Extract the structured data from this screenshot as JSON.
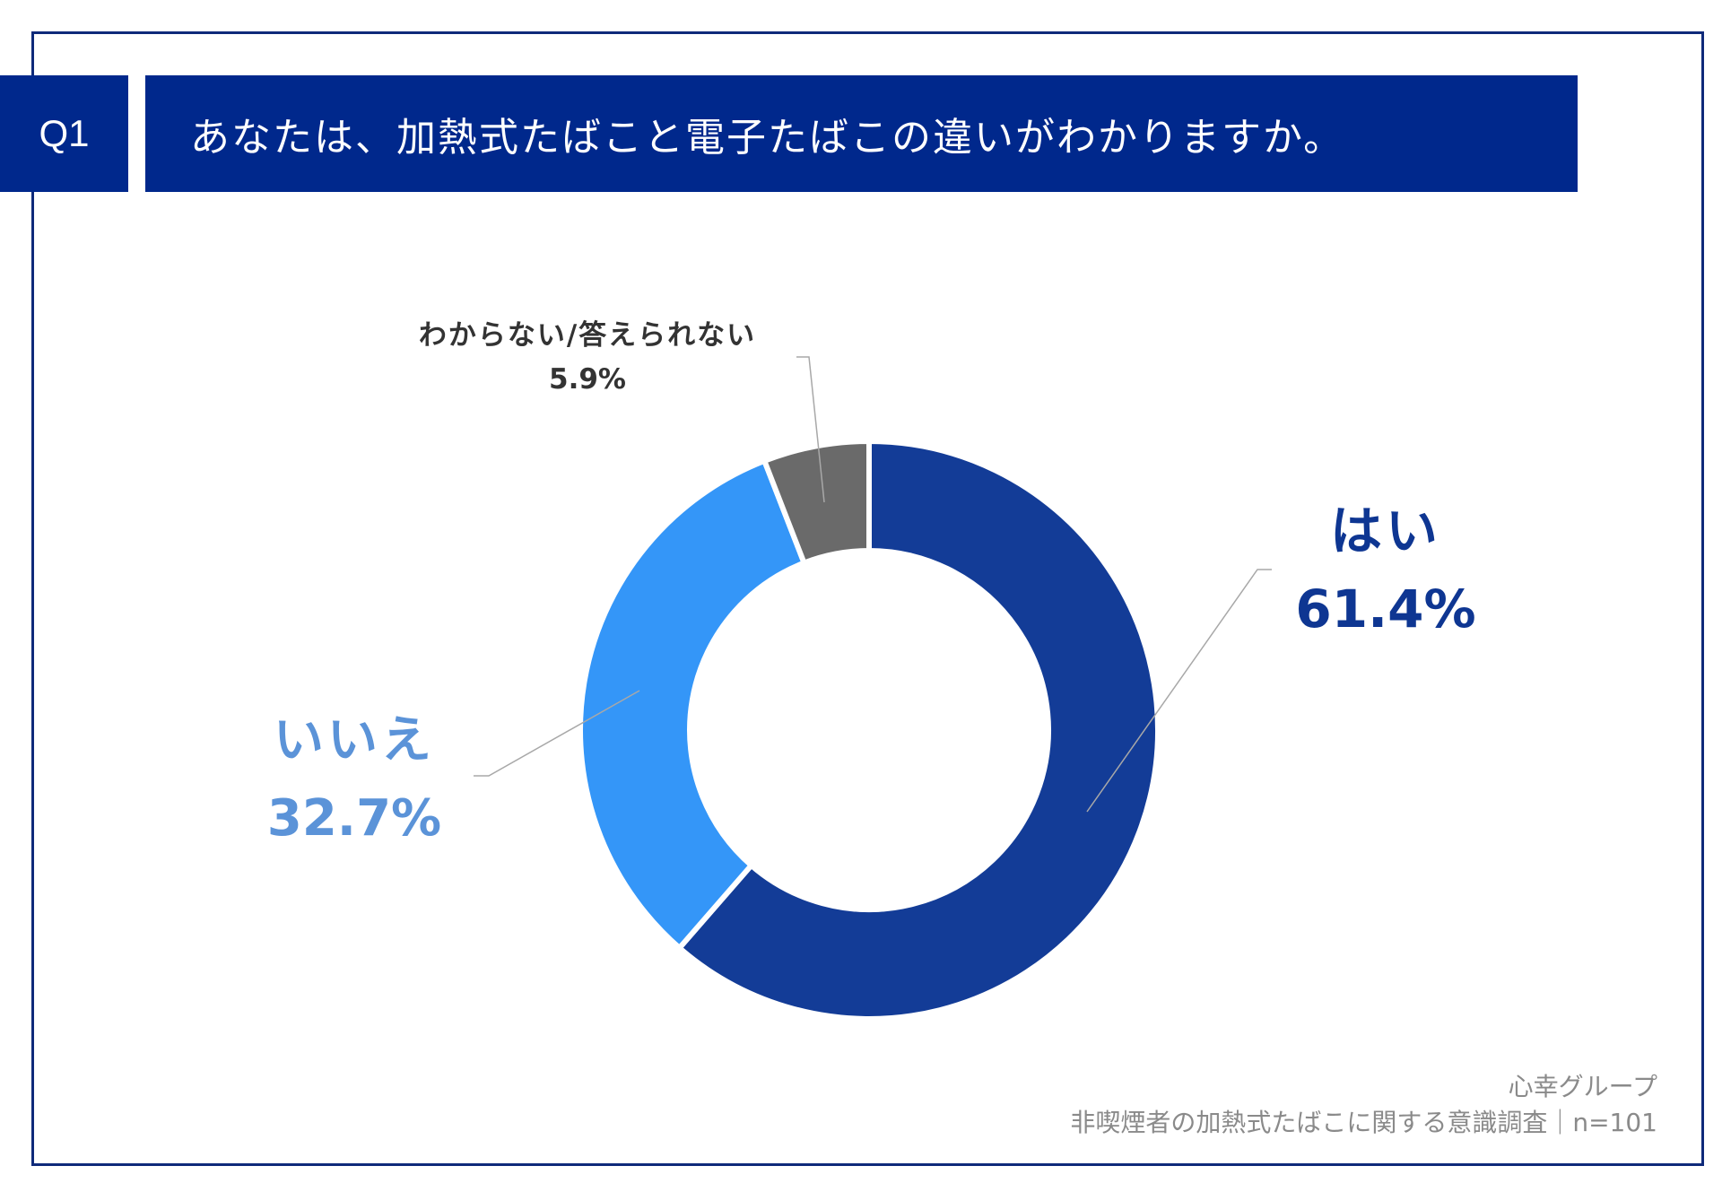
{
  "question": {
    "number": "Q1",
    "text": "あなたは、加熱式たばこと電子たばこの違いがわかりますか。"
  },
  "chart_data": {
    "type": "pie",
    "variant": "donut",
    "title": "あなたは、加熱式たばこと電子たばこの違いがわかりますか。",
    "unit": "%",
    "slices": [
      {
        "label": "はい",
        "value": 61.4,
        "value_text": "61.4%",
        "color": "#133c97"
      },
      {
        "label": "いいえ",
        "value": 32.7,
        "value_text": "32.7%",
        "color": "#3496f8"
      },
      {
        "label": "わからない/答えられない",
        "value": 5.9,
        "value_text": "5.9%",
        "color": "#6a6a6a"
      }
    ]
  },
  "source": {
    "company": "心幸グループ",
    "survey": "非喫煙者の加熱式たばこに関する意識調査｜n=101"
  },
  "colors": {
    "header_bg": "#00288c",
    "frame": "#0f2a7a",
    "leader_line": "#a8a8a8"
  }
}
